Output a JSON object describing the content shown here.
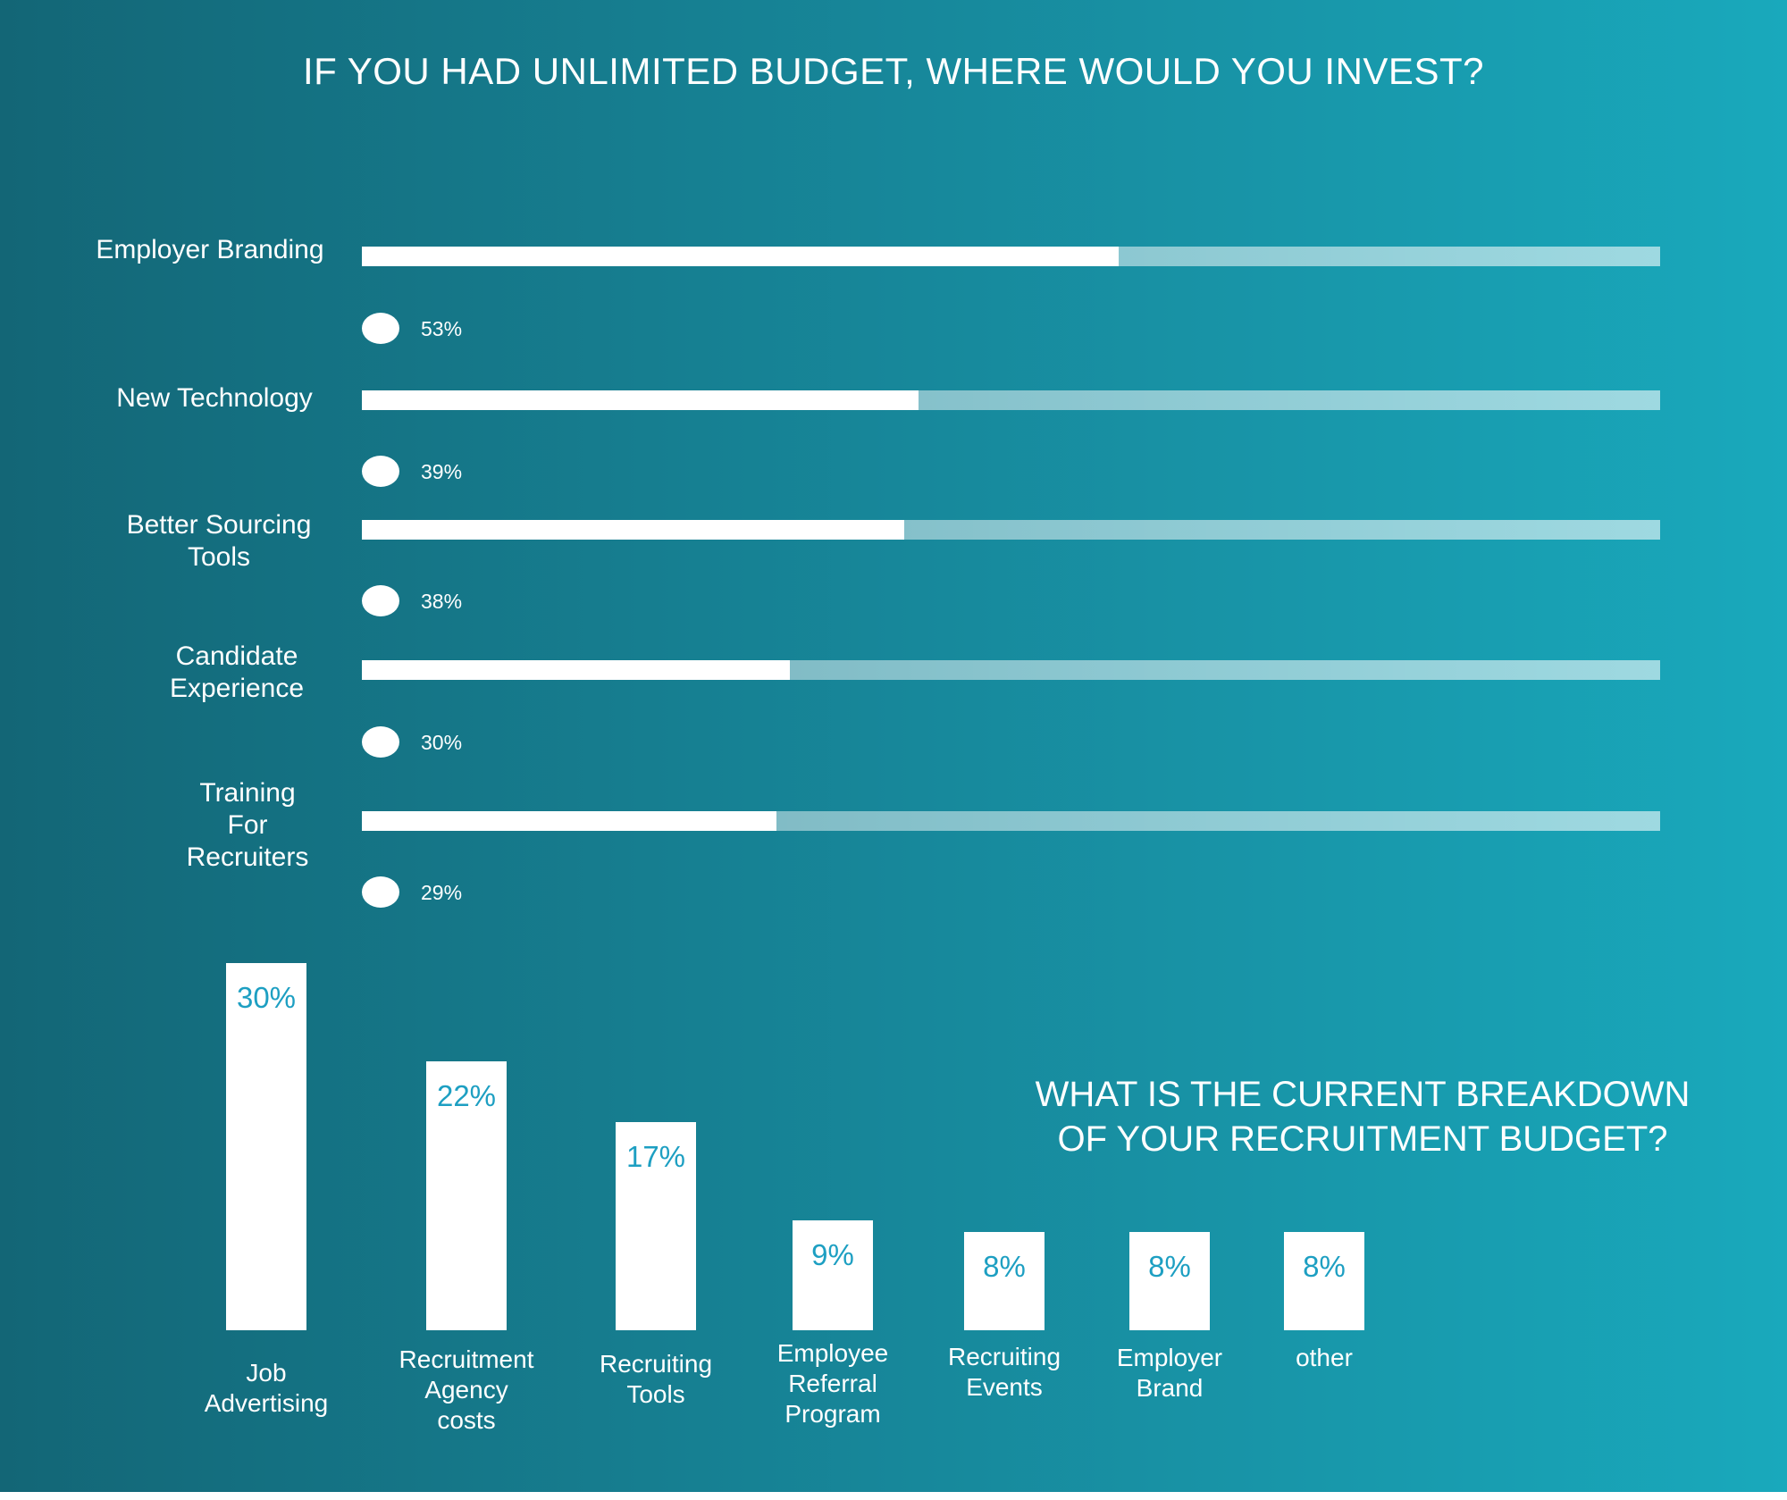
{
  "colors": {
    "background_left": "#136676",
    "background_right": "#19a9bc",
    "bar": "#ffffff",
    "value_text_on_bar": "#1d9fc2"
  },
  "chart_data": [
    {
      "type": "bar",
      "orientation": "horizontal",
      "title": "IF YOU HAD UNLIMITED BUDGET, WHERE WOULD YOU INVEST?",
      "categories": [
        "Employer Branding",
        "New Technology",
        "Better Sourcing\nTools",
        "Candidate\nExperience",
        "Training\nFor\nRecruiters"
      ],
      "values": [
        53,
        39,
        38,
        30,
        29
      ],
      "value_labels": [
        "53%",
        "39%",
        "38%",
        "30%",
        "29%"
      ],
      "xlim": [
        0,
        100
      ],
      "grid": false
    },
    {
      "type": "bar",
      "orientation": "vertical",
      "title": "WHAT IS THE CURRENT BREAKDOWN\nOF YOUR RECRUITMENT BUDGET?",
      "categories": [
        "Job\nAdvertising",
        "Recruitment\nAgency\ncosts",
        "Recruiting\nTools",
        "Employee\nReferral\nProgram",
        "Recruiting\nEvents",
        "Employer\nBrand",
        "other"
      ],
      "values": [
        30,
        22,
        17,
        9,
        8,
        8,
        8
      ],
      "value_labels": [
        "30%",
        "22%",
        "17%",
        "9%",
        "8%",
        "8%",
        "8%"
      ],
      "ylim": [
        0,
        30
      ],
      "grid": false
    }
  ]
}
